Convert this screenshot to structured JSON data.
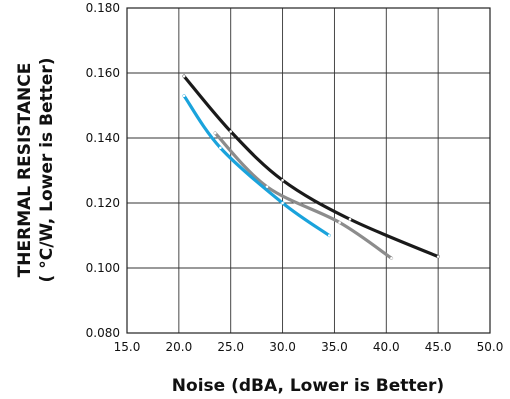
{
  "chart_data": {
    "type": "line",
    "title": "",
    "xlabel": "Noise (dBA, Lower is Better)",
    "ylabel_line1": "THERMAL RESISTANCE",
    "ylabel_line2": "( °C/W,  Lower is Better)",
    "xlim": [
      15.0,
      50.0
    ],
    "ylim": [
      0.08,
      0.18
    ],
    "grid": true,
    "x_ticks": [
      "15.0",
      "20.0",
      "25.0",
      "30.0",
      "35.0",
      "40.0",
      "45.0",
      "50.0"
    ],
    "y_ticks": [
      "0.080",
      "0.100",
      "0.120",
      "0.140",
      "0.160",
      "0.180"
    ],
    "series": [
      {
        "color": "#1a1a1a",
        "points": [
          [
            20.5,
            0.159
          ],
          [
            25.0,
            0.142
          ],
          [
            30.0,
            0.127
          ],
          [
            36.5,
            0.115
          ],
          [
            45.0,
            0.1035
          ]
        ]
      },
      {
        "color": "#8c8c8c",
        "points": [
          [
            23.5,
            0.1415
          ],
          [
            28.5,
            0.125
          ],
          [
            35.5,
            0.114
          ],
          [
            40.5,
            0.103
          ]
        ]
      },
      {
        "color": "#1aa3dc",
        "points": [
          [
            20.5,
            0.153
          ],
          [
            24.0,
            0.137
          ],
          [
            30.0,
            0.12
          ],
          [
            34.5,
            0.11
          ]
        ]
      }
    ]
  }
}
